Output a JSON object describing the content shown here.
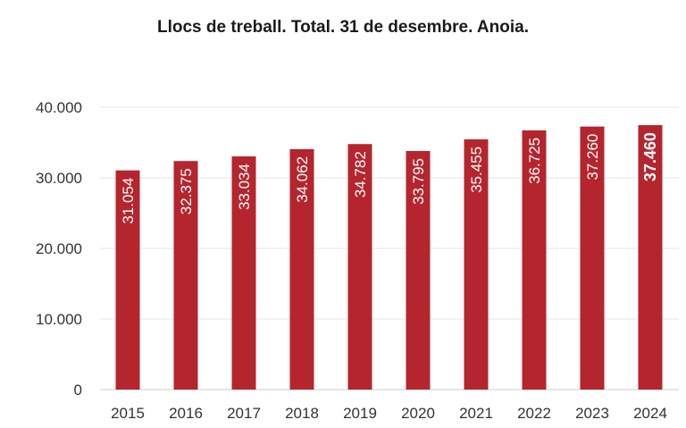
{
  "chart_data": {
    "type": "bar",
    "title": "Llocs de treball. Total. 31 de desembre. Anoia.",
    "xlabel": "",
    "ylabel": "",
    "categories": [
      "2015",
      "2016",
      "2017",
      "2018",
      "2019",
      "2020",
      "2021",
      "2022",
      "2023",
      "2024"
    ],
    "values": [
      31054,
      32375,
      33034,
      34062,
      34782,
      33795,
      35455,
      36725,
      37260,
      37460
    ],
    "data_labels": [
      "31.054",
      "32.375",
      "33.034",
      "34.062",
      "34.782",
      "33.795",
      "35.455",
      "36.725",
      "37.260",
      "37.460"
    ],
    "highlight_index": 9,
    "ylim": [
      0,
      40000
    ],
    "yticks": [
      0,
      10000,
      20000,
      30000,
      40000
    ],
    "ytick_labels": [
      "0",
      "10.000",
      "20.000",
      "30.000",
      "40.000"
    ],
    "grid": true,
    "legend": "none",
    "colors": {
      "bar": "#b5252d",
      "grid": "#e6e6e6",
      "axis": "#cccccc"
    }
  }
}
